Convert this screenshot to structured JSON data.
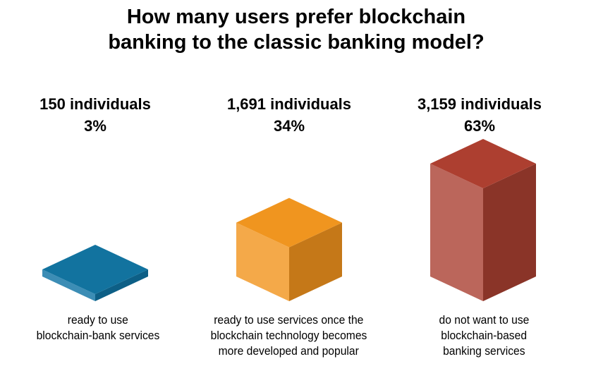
{
  "chart_data": {
    "type": "bar",
    "style": "isometric-3d",
    "title": [
      "How many users prefer blockchain",
      "banking to the classic banking model?"
    ],
    "categories": [
      [
        "ready to use",
        "blockchain-bank services"
      ],
      [
        "ready to use services once the",
        "blockchain technology becomes",
        "more developed and popular"
      ],
      [
        "do not want to use",
        "blockchain-based",
        "banking services"
      ]
    ],
    "count_labels": [
      "150 individuals",
      "1,691 individuals",
      "3,159 individuals"
    ],
    "percent_labels": [
      "3%",
      "34%",
      "63%"
    ],
    "values": [
      150,
      1691,
      3159
    ],
    "percents": [
      3,
      34,
      63
    ],
    "colors": [
      {
        "top": "#12739f",
        "left": "#3c8db5",
        "right": "#0d5f86"
      },
      {
        "top": "#f0951f",
        "left": "#f4a949",
        "right": "#c57818"
      },
      {
        "top": "#ad3f30",
        "left": "#bb665b",
        "right": "#8a3428"
      }
    ]
  }
}
